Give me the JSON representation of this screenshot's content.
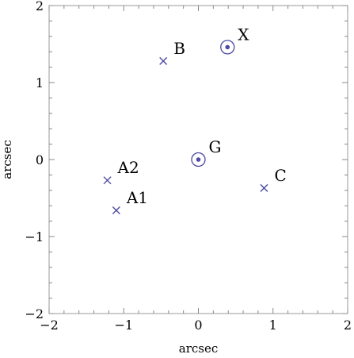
{
  "chart_data": {
    "type": "scatter",
    "title": "",
    "xlabel": "arcsec",
    "ylabel": "arcsec",
    "xlim": [
      -2,
      2
    ],
    "ylim": [
      -2,
      2
    ],
    "grid": false,
    "x_ticks": [
      -2,
      -1,
      0,
      1,
      2
    ],
    "y_ticks": [
      -2,
      -1,
      0,
      1,
      2
    ],
    "x_tick_labels": [
      "−2",
      "−1",
      "0",
      "1",
      "2"
    ],
    "y_tick_labels": [
      "−2",
      "−1",
      "0",
      "1",
      "2"
    ],
    "marker_color": "#4a4aa3",
    "points": [
      {
        "label": "A1",
        "x": -1.1,
        "y": -0.66,
        "marker": "cross"
      },
      {
        "label": "A2",
        "x": -1.22,
        "y": -0.27,
        "marker": "cross"
      },
      {
        "label": "B",
        "x": -0.47,
        "y": 1.28,
        "marker": "cross"
      },
      {
        "label": "C",
        "x": 0.88,
        "y": -0.37,
        "marker": "cross"
      },
      {
        "label": "G",
        "x": 0.0,
        "y": 0.0,
        "marker": "circled-dot"
      },
      {
        "label": "X",
        "x": 0.39,
        "y": 1.46,
        "marker": "circled-dot"
      }
    ]
  }
}
